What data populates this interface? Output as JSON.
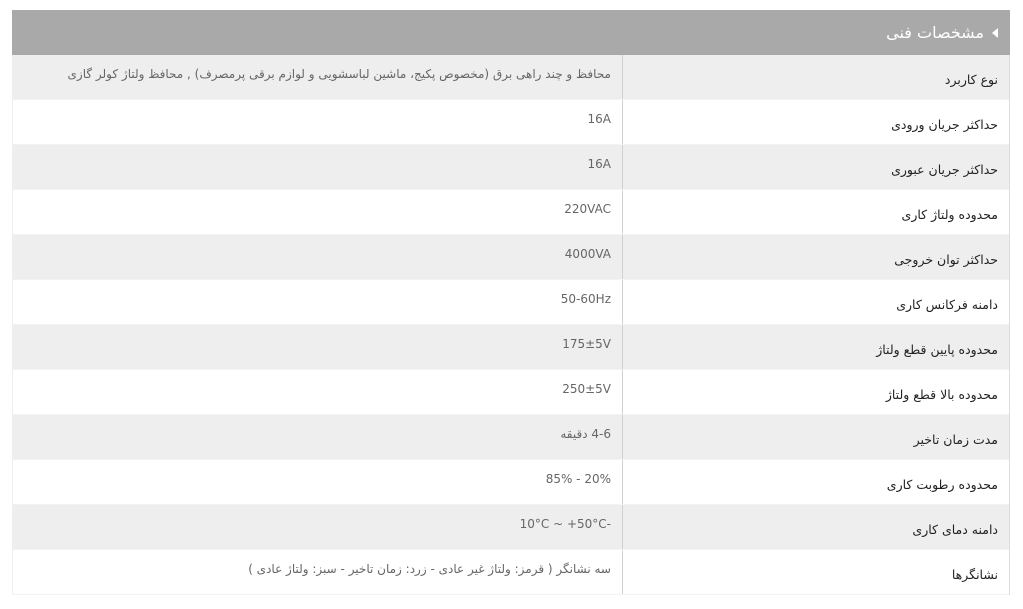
{
  "header": {
    "title": "مشخصات فنی",
    "icon": "triangle-left-icon"
  },
  "rows": [
    {
      "label": "نوع کاربرد",
      "value": "محافظ و چند راهی برق (مخصوص پکیج، ماشین لباسشویی و لوازم برقی پرمصرف) , محافظ ولتاژ کولر گازی"
    },
    {
      "label": "حداکثر جریان ورودی",
      "value": "16A"
    },
    {
      "label": "حداکثر جریان عبوری",
      "value": "16A"
    },
    {
      "label": "محدوده ولتاژ کاری",
      "value": "220VAC"
    },
    {
      "label": "حداکثر توان خروجی",
      "value": "4000VA"
    },
    {
      "label": "دامنه فرکانس کاری",
      "value": "50-60Hz"
    },
    {
      "label": "محدوده پایین قطع ولتاژ",
      "value": "175±5V"
    },
    {
      "label": "محدوده بالا قطع ولتاژ",
      "value": "250±5V"
    },
    {
      "label": "مدت زمان تاخیر",
      "value": "4-6 دقیقه"
    },
    {
      "label": "محدوده رطوبت کاری",
      "value": "20% - 85%"
    },
    {
      "label": "دامنه دمای کاری",
      "value": "-10°C ~ +50°C"
    },
    {
      "label": "نشانگرها",
      "value": "سه نشانگر ( قرمز: ولتاژ غیر عادی - زرد: زمان تاخیر - سبز: ولتاژ عادی )"
    }
  ]
}
